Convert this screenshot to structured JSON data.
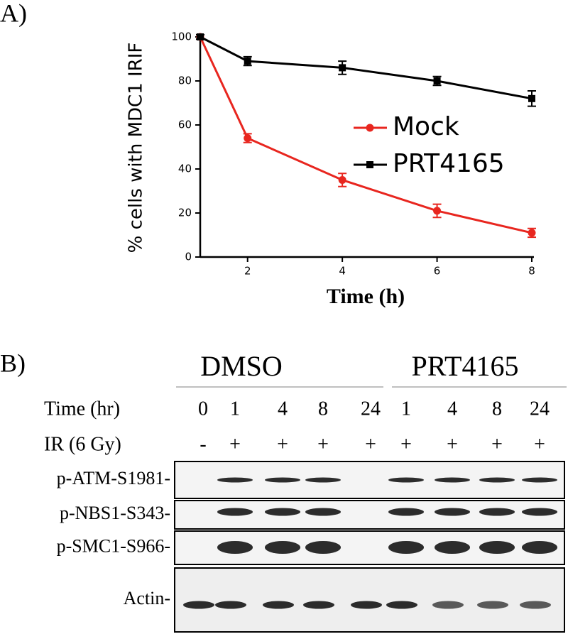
{
  "panel_labels": [
    "A)",
    "B)"
  ],
  "chart_data": {
    "type": "line",
    "y_label": "% cells with MDC1 IRIF",
    "x_label": "Time  (h)",
    "x": [
      1,
      2,
      4,
      6,
      8
    ],
    "xlim": [
      1,
      8
    ],
    "xticks": [
      2,
      4,
      6,
      8
    ],
    "ylim": [
      0,
      100
    ],
    "yticks": [
      0,
      20,
      40,
      60,
      80,
      100
    ],
    "series": [
      {
        "name": "Mock",
        "color": "#e8261f",
        "marker": "circle",
        "values": [
          100,
          54,
          35,
          21,
          11
        ],
        "errors": [
          1,
          2,
          3,
          3,
          2
        ]
      },
      {
        "name": "PRT4165",
        "color": "#000000",
        "marker": "square",
        "values": [
          100,
          89,
          86,
          80,
          72
        ],
        "errors": [
          1,
          2,
          3,
          2,
          3.5
        ]
      }
    ]
  },
  "blot": {
    "groups": [
      "DMSO",
      "PRT4165"
    ],
    "rows": [
      {
        "label": "Time (hr)",
        "values": [
          "0",
          "1",
          "4",
          "8",
          "24",
          "1",
          "4",
          "8",
          "24"
        ]
      },
      {
        "label": "IR (6 Gy)",
        "values": [
          "-",
          "+",
          "+",
          "+",
          "+",
          "+",
          "+",
          "+",
          "+"
        ]
      }
    ],
    "bands": [
      "p-ATM-S1981-",
      "p-NBS1-S343-",
      "p-SMC1-S966-",
      "Actin-"
    ]
  }
}
